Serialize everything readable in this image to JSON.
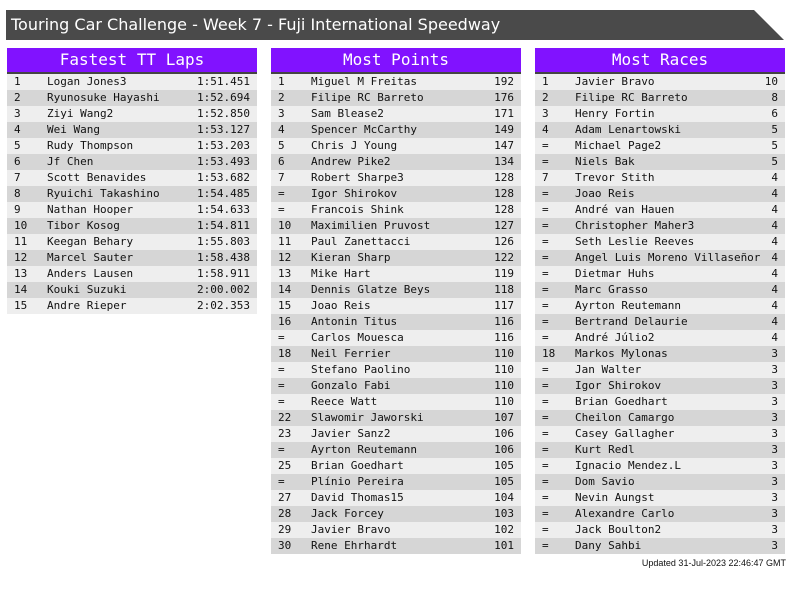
{
  "title": "Touring Car Challenge - Week 7 - Fuji International Speedway",
  "colors": {
    "header_bg": "#8112ff",
    "title_bg": "#4a4a4a",
    "row_light": "#eeeeee",
    "row_dark": "#d6d6d6"
  },
  "panels": [
    {
      "heading": "Fastest TT Laps",
      "rows": [
        [
          "1",
          "Logan Jones3",
          "1:51.451"
        ],
        [
          "2",
          "Ryunosuke Hayashi",
          "1:52.694"
        ],
        [
          "3",
          "Ziyi Wang2",
          "1:52.850"
        ],
        [
          "4",
          "Wei Wang",
          "1:53.127"
        ],
        [
          "5",
          "Rudy Thompson",
          "1:53.203"
        ],
        [
          "6",
          "Jf Chen",
          "1:53.493"
        ],
        [
          "7",
          "Scott Benavides",
          "1:53.682"
        ],
        [
          "8",
          "Ryuichi Takashino",
          "1:54.485"
        ],
        [
          "9",
          "Nathan Hooper",
          "1:54.633"
        ],
        [
          "10",
          "Tibor Kosog",
          "1:54.811"
        ],
        [
          "11",
          "Keegan Behary",
          "1:55.803"
        ],
        [
          "12",
          "Marcel Sauter",
          "1:58.438"
        ],
        [
          "13",
          "Anders Lausen",
          "1:58.911"
        ],
        [
          "14",
          "Kouki Suzuki",
          "2:00.002"
        ],
        [
          "15",
          "Andre Rieper",
          "2:02.353"
        ]
      ]
    },
    {
      "heading": "Most Points",
      "rows": [
        [
          "1",
          "Miguel M Freitas",
          "192"
        ],
        [
          "2",
          "Filipe RC Barreto",
          "176"
        ],
        [
          "3",
          "Sam Blease2",
          "171"
        ],
        [
          "4",
          "Spencer McCarthy",
          "149"
        ],
        [
          "5",
          "Chris J Young",
          "147"
        ],
        [
          "6",
          "Andrew Pike2",
          "134"
        ],
        [
          "7",
          "Robert Sharpe3",
          "128"
        ],
        [
          "=",
          "Igor Shirokov",
          "128"
        ],
        [
          "=",
          "Francois Shink",
          "128"
        ],
        [
          "10",
          "Maximilien Pruvost",
          "127"
        ],
        [
          "11",
          "Paul Zanettacci",
          "126"
        ],
        [
          "12",
          "Kieran Sharp",
          "122"
        ],
        [
          "13",
          "Mike Hart",
          "119"
        ],
        [
          "14",
          "Dennis Glatze Beys",
          "118"
        ],
        [
          "15",
          "Joao Reis",
          "117"
        ],
        [
          "16",
          "Antonin Titus",
          "116"
        ],
        [
          "=",
          "Carlos Mouesca",
          "116"
        ],
        [
          "18",
          "Neil Ferrier",
          "110"
        ],
        [
          "=",
          "Stefano Paolino",
          "110"
        ],
        [
          "=",
          "Gonzalo Fabi",
          "110"
        ],
        [
          "=",
          "Reece Watt",
          "110"
        ],
        [
          "22",
          "Slawomir Jaworski",
          "107"
        ],
        [
          "23",
          "Javier Sanz2",
          "106"
        ],
        [
          "=",
          "Ayrton Reutemann",
          "106"
        ],
        [
          "25",
          "Brian Goedhart",
          "105"
        ],
        [
          "=",
          "Plínio Pereira",
          "105"
        ],
        [
          "27",
          "David Thomas15",
          "104"
        ],
        [
          "28",
          "Jack Forcey",
          "103"
        ],
        [
          "29",
          "Javier Bravo",
          "102"
        ],
        [
          "30",
          "Rene Ehrhardt",
          "101"
        ]
      ]
    },
    {
      "heading": "Most Races",
      "rows": [
        [
          "1",
          "Javier Bravo",
          "10"
        ],
        [
          "2",
          "Filipe RC Barreto",
          "8"
        ],
        [
          "3",
          "Henry Fortin",
          "6"
        ],
        [
          "4",
          "Adam Lenartowski",
          "5"
        ],
        [
          "=",
          "Michael Page2",
          "5"
        ],
        [
          "=",
          "Niels Bak",
          "5"
        ],
        [
          "7",
          "Trevor Stith",
          "4"
        ],
        [
          "=",
          "Joao Reis",
          "4"
        ],
        [
          "=",
          "André van Hauen",
          "4"
        ],
        [
          "=",
          "Christopher Maher3",
          "4"
        ],
        [
          "=",
          "Seth Leslie Reeves",
          "4"
        ],
        [
          "=",
          "Angel Luis Moreno Villaseñor",
          "4"
        ],
        [
          "=",
          "Dietmar Huhs",
          "4"
        ],
        [
          "=",
          "Marc Grasso",
          "4"
        ],
        [
          "=",
          "Ayrton Reutemann",
          "4"
        ],
        [
          "=",
          "Bertrand Delaurie",
          "4"
        ],
        [
          "=",
          "André Júlio2",
          "4"
        ],
        [
          "18",
          "Markos Mylonas",
          "3"
        ],
        [
          "=",
          "Jan Walter",
          "3"
        ],
        [
          "=",
          "Igor Shirokov",
          "3"
        ],
        [
          "=",
          "Brian Goedhart",
          "3"
        ],
        [
          "=",
          "Cheilon Camargo",
          "3"
        ],
        [
          "=",
          "Casey Gallagher",
          "3"
        ],
        [
          "=",
          "Kurt Redl",
          "3"
        ],
        [
          "=",
          "Ignacio Mendez.L",
          "3"
        ],
        [
          "=",
          "Dom Savio",
          "3"
        ],
        [
          "=",
          "Nevin Aungst",
          "3"
        ],
        [
          "=",
          "Alexandre Carlo",
          "3"
        ],
        [
          "=",
          "Jack Boulton2",
          "3"
        ],
        [
          "=",
          "Dany Sahbi",
          "3"
        ]
      ]
    }
  ],
  "footer": "Updated 31-Jul-2023 22:46:47 GMT"
}
